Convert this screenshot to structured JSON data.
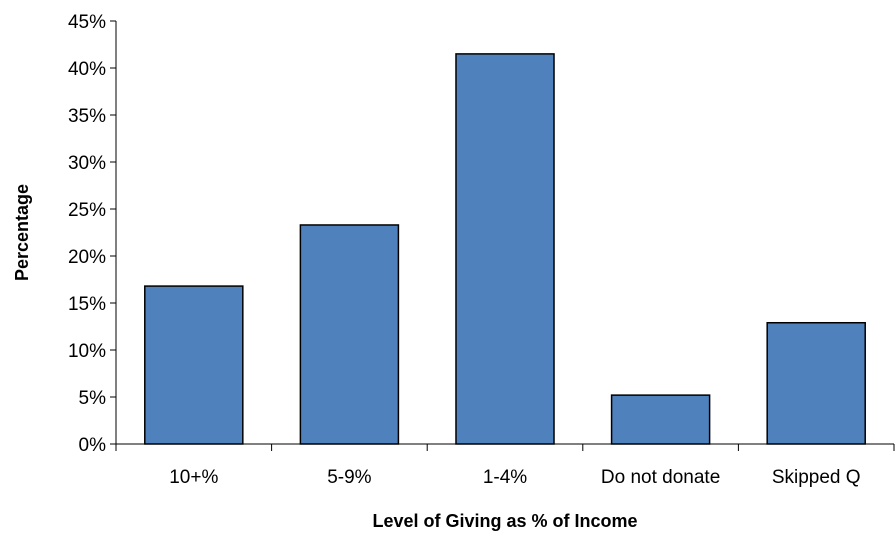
{
  "chart_data": {
    "type": "bar",
    "title": "",
    "xlabel": "Level of Giving as % of Income",
    "ylabel": "Percentage",
    "categories": [
      "10+%",
      "5-9%",
      "1-4%",
      "Do not donate",
      "Skipped Q"
    ],
    "values": [
      16.8,
      23.3,
      41.5,
      5.2,
      12.9
    ],
    "ylim": [
      0,
      45
    ],
    "yticks": [
      0,
      5,
      10,
      15,
      20,
      25,
      30,
      35,
      40,
      45
    ],
    "ytick_labels": [
      "0%",
      "5%",
      "10%",
      "15%",
      "20%",
      "25%",
      "30%",
      "35%",
      "40%",
      "45%"
    ],
    "bar_color": "#4F81BD",
    "bar_edge_color": "#000000",
    "grid": false,
    "legend": "none"
  }
}
